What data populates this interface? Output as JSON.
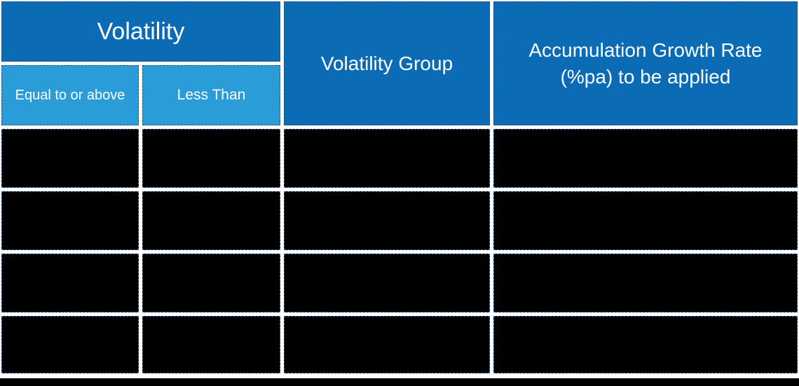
{
  "table": {
    "title_group_header": "Volatility",
    "columns": {
      "equal_to_or_above": "Equal to or above",
      "less_than": "Less Than",
      "volatility_group": "Volatility Group",
      "accumulation_growth_rate": "Accumulation Growth Rate (%pa) to be applied"
    },
    "data_rows": [
      {
        "equal_to_or_above": "",
        "less_than": "",
        "volatility_group": "",
        "accumulation_growth_rate": "",
        "redacted": true
      },
      {
        "equal_to_or_above": "",
        "less_than": "",
        "volatility_group": "",
        "accumulation_growth_rate": "",
        "redacted": true
      },
      {
        "equal_to_or_above": "",
        "less_than": "",
        "volatility_group": "",
        "accumulation_growth_rate": "",
        "redacted": true
      },
      {
        "equal_to_or_above": "",
        "less_than": "",
        "volatility_group": "",
        "accumulation_growth_rate": "",
        "redacted": true
      }
    ]
  },
  "colors": {
    "header_dark_blue": "#0b6bb5",
    "header_light_blue": "#2a9cd8",
    "redacted_cell": "#000000",
    "header_text": "#ffffff",
    "gap_background": "#ffffff",
    "dashed_border": "#2e4d74"
  }
}
